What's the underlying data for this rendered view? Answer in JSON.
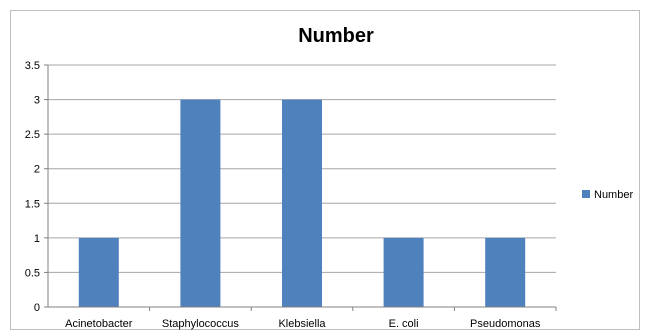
{
  "chart_data": {
    "type": "bar",
    "title": "Number",
    "categories": [
      "Acinetobacter",
      "Staphylococcus",
      "Klebsiella",
      "E. coli",
      "Pseudomonas"
    ],
    "series": [
      {
        "name": "Number",
        "values": [
          1,
          3,
          3,
          1,
          1
        ],
        "color": "#4f81bd"
      }
    ],
    "ylim": [
      0,
      3.5
    ],
    "yticks": [
      0,
      0.5,
      1,
      1.5,
      2,
      2.5,
      3,
      3.5
    ],
    "grid": true,
    "legend_position": "right",
    "xlabel": "",
    "ylabel": ""
  }
}
